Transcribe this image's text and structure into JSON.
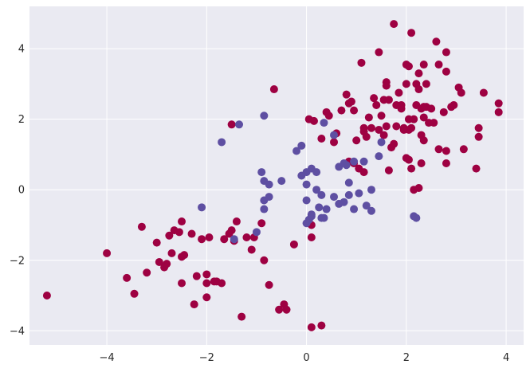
{
  "chart_data": {
    "type": "scatter",
    "title": "",
    "xlabel": "",
    "ylabel": "",
    "xlim": [
      -5.55,
      4.35
    ],
    "ylim": [
      -4.4,
      5.2
    ],
    "xticks": [
      -4,
      -2,
      0,
      2,
      4
    ],
    "yticks": [
      -4,
      -2,
      0,
      2,
      4
    ],
    "grid": true,
    "background_color": "#EAEAF2",
    "grid_color": "#FFFFFF",
    "series": [
      {
        "color": "#9E0142",
        "points": [
          [
            -5.2,
            -3.0
          ],
          [
            -4.0,
            -1.8
          ],
          [
            -3.6,
            -2.5
          ],
          [
            -3.45,
            -2.95
          ],
          [
            -3.3,
            -1.05
          ],
          [
            -3.2,
            -2.35
          ],
          [
            -3.0,
            -1.5
          ],
          [
            -2.95,
            -2.05
          ],
          [
            -2.85,
            -2.2
          ],
          [
            -2.8,
            -2.1
          ],
          [
            -2.75,
            -1.3
          ],
          [
            -2.7,
            -1.8
          ],
          [
            -2.65,
            -1.15
          ],
          [
            -2.55,
            -1.2
          ],
          [
            -2.5,
            -0.9
          ],
          [
            -2.5,
            -1.9
          ],
          [
            -2.45,
            -1.85
          ],
          [
            -2.5,
            -2.65
          ],
          [
            -2.3,
            -1.25
          ],
          [
            -2.25,
            -3.25
          ],
          [
            -2.2,
            -2.45
          ],
          [
            -2.1,
            -1.4
          ],
          [
            -2.0,
            -3.05
          ],
          [
            -2.0,
            -2.4
          ],
          [
            -2.0,
            -2.65
          ],
          [
            -1.95,
            -1.35
          ],
          [
            -1.85,
            -2.6
          ],
          [
            -1.8,
            -2.6
          ],
          [
            -1.7,
            -2.65
          ],
          [
            -1.65,
            -1.4
          ],
          [
            -1.55,
            -1.25
          ],
          [
            -1.5,
            -1.15
          ],
          [
            -1.45,
            -1.45
          ],
          [
            -1.4,
            -0.9
          ],
          [
            -1.5,
            1.85
          ],
          [
            -1.3,
            -3.6
          ],
          [
            -1.2,
            -1.35
          ],
          [
            -1.1,
            -1.7
          ],
          [
            -1.05,
            -1.35
          ],
          [
            -0.9,
            -0.95
          ],
          [
            -0.85,
            -2.0
          ],
          [
            -0.75,
            -2.7
          ],
          [
            -0.65,
            2.85
          ],
          [
            -0.55,
            -3.4
          ],
          [
            -0.45,
            -3.25
          ],
          [
            -0.4,
            -3.4
          ],
          [
            -0.25,
            -1.55
          ],
          [
            0.05,
            2.0
          ],
          [
            0.1,
            -1.35
          ],
          [
            0.1,
            -3.9
          ],
          [
            0.1,
            -1.0
          ],
          [
            0.3,
            -3.85
          ],
          [
            0.3,
            1.45
          ],
          [
            0.4,
            2.2
          ],
          [
            0.45,
            2.1
          ],
          [
            0.55,
            1.35
          ],
          [
            0.6,
            1.6
          ],
          [
            0.7,
            2.25
          ],
          [
            0.8,
            2.7
          ],
          [
            0.85,
            2.45
          ],
          [
            0.9,
            2.5
          ],
          [
            0.95,
            2.25
          ],
          [
            0.85,
            0.8
          ],
          [
            0.95,
            0.75
          ],
          [
            1.0,
            1.4
          ],
          [
            1.05,
            0.6
          ],
          [
            1.1,
            3.6
          ],
          [
            1.15,
            0.5
          ],
          [
            1.15,
            1.65
          ],
          [
            1.2,
            1.5
          ],
          [
            1.25,
            2.05
          ],
          [
            1.3,
            1.75
          ],
          [
            1.35,
            2.6
          ],
          [
            1.4,
            2.4
          ],
          [
            1.45,
            3.9
          ],
          [
            1.45,
            1.7
          ],
          [
            1.5,
            2.1
          ],
          [
            1.55,
            2.55
          ],
          [
            1.6,
            3.05
          ],
          [
            1.6,
            2.95
          ],
          [
            1.65,
            2.55
          ],
          [
            1.55,
            1.55
          ],
          [
            1.6,
            1.8
          ],
          [
            1.65,
            0.55
          ],
          [
            1.7,
            1.2
          ],
          [
            1.75,
            4.7
          ],
          [
            1.75,
            1.3
          ],
          [
            1.8,
            1.8
          ],
          [
            1.8,
            2.4
          ],
          [
            1.85,
            2.75
          ],
          [
            1.9,
            2.4
          ],
          [
            1.9,
            2.3
          ],
          [
            1.95,
            1.7
          ],
          [
            2.0,
            3.55
          ],
          [
            2.0,
            3.0
          ],
          [
            2.0,
            0.9
          ],
          [
            2.05,
            3.5
          ],
          [
            2.05,
            2.0
          ],
          [
            2.05,
            1.7
          ],
          [
            2.05,
            0.85
          ],
          [
            2.1,
            4.45
          ],
          [
            2.1,
            1.75
          ],
          [
            2.1,
            0.6
          ],
          [
            2.15,
            0.0
          ],
          [
            2.2,
            3.0
          ],
          [
            2.2,
            2.4
          ],
          [
            2.25,
            3.3
          ],
          [
            2.25,
            2.85
          ],
          [
            2.25,
            0.05
          ],
          [
            2.3,
            2.3
          ],
          [
            2.3,
            1.55
          ],
          [
            2.3,
            0.75
          ],
          [
            2.35,
            3.55
          ],
          [
            2.35,
            2.05
          ],
          [
            2.35,
            1.4
          ],
          [
            2.4,
            3.0
          ],
          [
            2.4,
            2.35
          ],
          [
            2.45,
            1.9
          ],
          [
            2.5,
            2.3
          ],
          [
            2.55,
            1.9
          ],
          [
            2.6,
            4.2
          ],
          [
            2.65,
            3.55
          ],
          [
            2.65,
            1.15
          ],
          [
            2.75,
            2.2
          ],
          [
            2.8,
            3.9
          ],
          [
            2.8,
            3.35
          ],
          [
            2.8,
            1.1
          ],
          [
            2.8,
            0.75
          ],
          [
            2.9,
            2.35
          ],
          [
            2.95,
            2.4
          ],
          [
            3.05,
            2.9
          ],
          [
            3.1,
            2.75
          ],
          [
            3.15,
            1.15
          ],
          [
            3.4,
            0.6
          ],
          [
            3.45,
            1.75
          ],
          [
            3.45,
            1.5
          ],
          [
            3.55,
            2.75
          ],
          [
            3.85,
            2.45
          ],
          [
            3.85,
            2.2
          ],
          [
            2.35,
            2.35
          ],
          [
            1.95,
            1.75
          ],
          [
            1.15,
            1.75
          ],
          [
            0.15,
            1.95
          ],
          [
            2.15,
            2.0
          ]
        ]
      },
      {
        "color": "#5E4FA2",
        "points": [
          [
            -2.1,
            -0.5
          ],
          [
            -1.7,
            1.35
          ],
          [
            -1.45,
            -1.4
          ],
          [
            -1.35,
            1.85
          ],
          [
            -1.0,
            -1.2
          ],
          [
            -0.85,
            2.1
          ],
          [
            -0.9,
            0.5
          ],
          [
            -0.85,
            0.25
          ],
          [
            -0.85,
            -0.3
          ],
          [
            -0.85,
            -0.55
          ],
          [
            -0.75,
            -0.2
          ],
          [
            -0.75,
            0.15
          ],
          [
            -0.5,
            0.25
          ],
          [
            -0.2,
            1.1
          ],
          [
            -0.1,
            1.25
          ],
          [
            -0.1,
            0.4
          ],
          [
            0.0,
            0.15
          ],
          [
            0.0,
            0.5
          ],
          [
            0.0,
            -0.3
          ],
          [
            0.0,
            -0.95
          ],
          [
            0.05,
            -0.85
          ],
          [
            0.1,
            0.6
          ],
          [
            0.1,
            -0.7
          ],
          [
            0.1,
            -0.75
          ],
          [
            0.2,
            0.0
          ],
          [
            0.25,
            -0.5
          ],
          [
            0.3,
            -0.15
          ],
          [
            0.3,
            -0.8
          ],
          [
            0.35,
            1.9
          ],
          [
            0.4,
            -0.55
          ],
          [
            0.55,
            1.55
          ],
          [
            0.55,
            -0.2
          ],
          [
            0.65,
            0.65
          ],
          [
            0.75,
            -0.35
          ],
          [
            0.8,
            0.7
          ],
          [
            0.85,
            0.2
          ],
          [
            0.85,
            -0.15
          ],
          [
            0.95,
            0.8
          ],
          [
            0.95,
            -0.55
          ],
          [
            1.05,
            -0.1
          ],
          [
            1.15,
            0.8
          ],
          [
            1.2,
            -0.45
          ],
          [
            1.3,
            0.0
          ],
          [
            1.3,
            -0.6
          ],
          [
            1.45,
            0.95
          ],
          [
            1.5,
            1.35
          ],
          [
            2.15,
            -0.75
          ],
          [
            2.2,
            -0.8
          ],
          [
            0.65,
            -0.4
          ],
          [
            0.35,
            -0.8
          ],
          [
            0.75,
            0.75
          ],
          [
            0.2,
            0.5
          ]
        ]
      }
    ]
  }
}
